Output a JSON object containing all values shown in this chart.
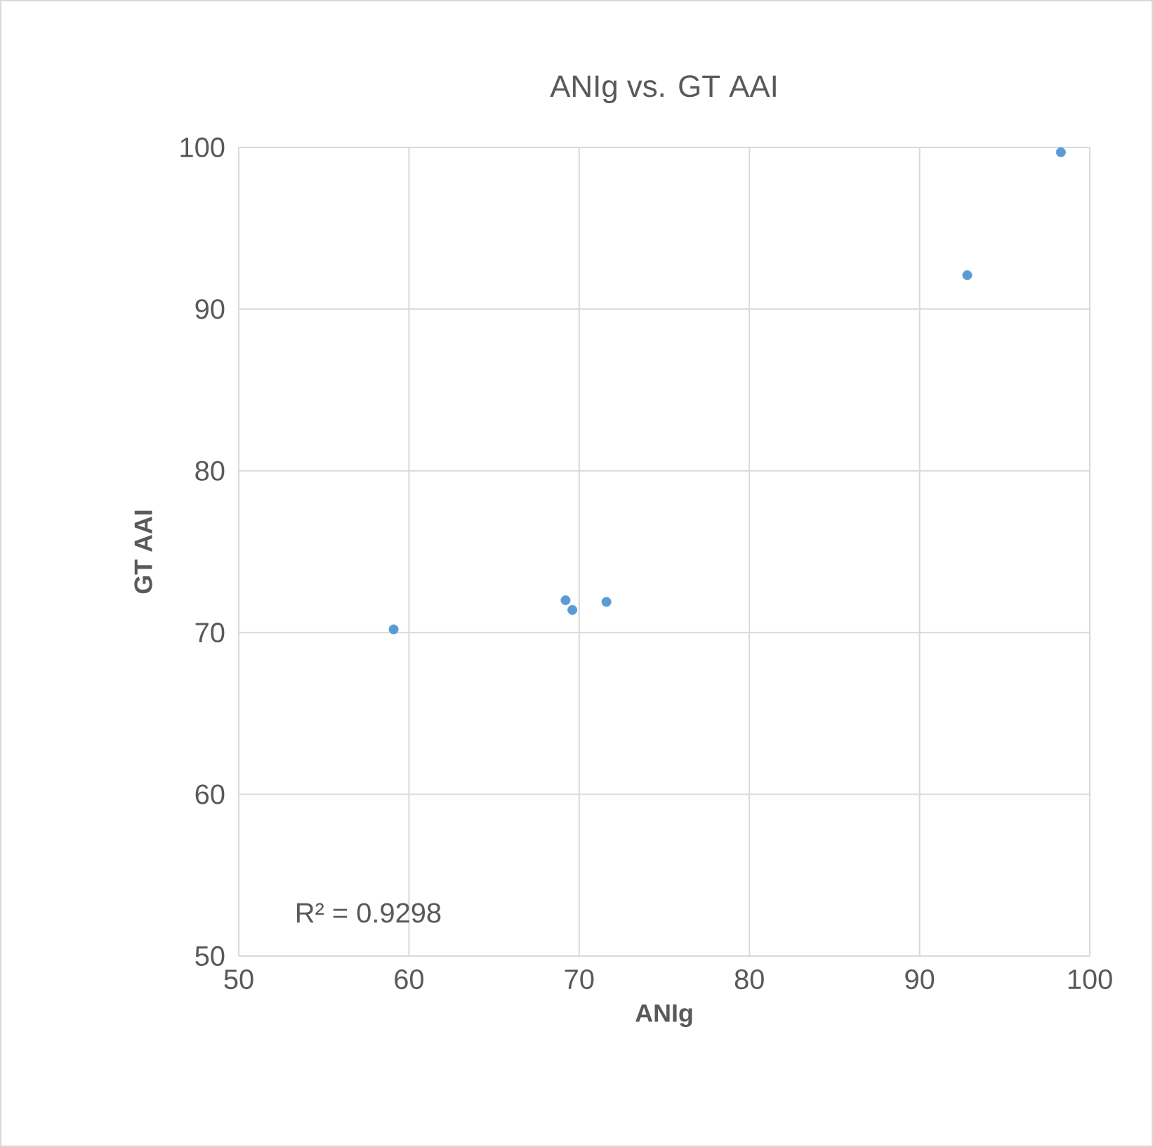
{
  "chart_data": {
    "type": "scatter",
    "title": "ANIg vs. GT AAI",
    "xlabel": "ANIg",
    "ylabel": "GT AAI",
    "x": [
      59.1,
      69.2,
      69.6,
      71.6,
      92.8,
      98.3
    ],
    "series": [
      {
        "color": "#5b9bd5",
        "values": [
          70.2,
          72.0,
          71.4,
          71.9,
          92.1,
          99.7
        ]
      }
    ],
    "xlim": [
      50,
      100
    ],
    "ylim": [
      50,
      100
    ],
    "xticks": [
      50,
      60,
      70,
      80,
      90,
      100
    ],
    "yticks": [
      50,
      60,
      70,
      80,
      90,
      100
    ],
    "grid": true,
    "marker": "circle",
    "annotations": [
      "R² = 0.9298"
    ]
  }
}
